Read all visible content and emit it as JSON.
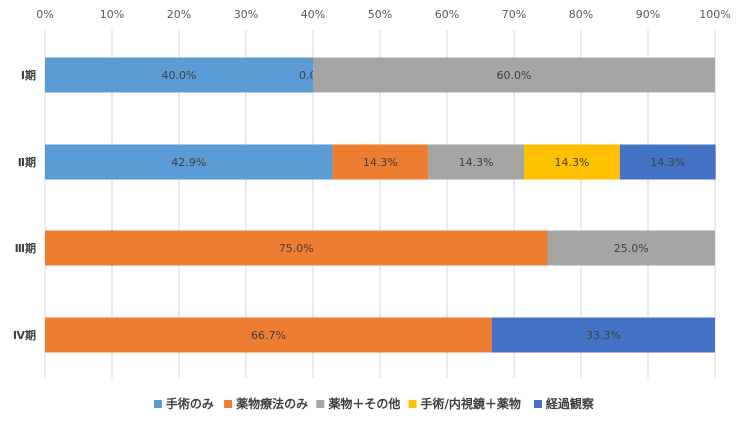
{
  "chart_data": {
    "type": "bar",
    "orientation": "horizontal",
    "stacked": "percent",
    "categories": [
      "Ⅰ期",
      "Ⅱ期",
      "Ⅲ期",
      "Ⅳ期"
    ],
    "series": [
      {
        "name": "手術のみ",
        "color": "#5B9BD5",
        "values": [
          40.0,
          42.9,
          0,
          0
        ],
        "labels": [
          "40.0%",
          "42.9%",
          "",
          ""
        ]
      },
      {
        "name": "薬物療法のみ",
        "color": "#ED7D31",
        "values": [
          0.0,
          14.3,
          75.0,
          66.7
        ],
        "labels": [
          "0.0%",
          "14.3%",
          "75.0%",
          "66.7%"
        ]
      },
      {
        "name": "薬物＋その他",
        "color": "#A5A5A5",
        "values": [
          60.0,
          14.3,
          25.0,
          0
        ],
        "labels": [
          "60.0%",
          "14.3%",
          "25.0%",
          ""
        ]
      },
      {
        "name": "手術/内視鏡＋薬物",
        "color": "#FFC000",
        "values": [
          0,
          14.3,
          0,
          0
        ],
        "labels": [
          "",
          "14.3%",
          "",
          ""
        ]
      },
      {
        "name": "経過観察",
        "color": "#4472C4",
        "values": [
          0,
          14.3,
          0,
          33.3
        ],
        "labels": [
          "",
          "14.3%",
          "",
          "33.3%"
        ]
      }
    ],
    "x_ticks": [
      "0%",
      "10%",
      "20%",
      "30%",
      "40%",
      "50%",
      "60%",
      "70%",
      "80%",
      "90%",
      "100%"
    ],
    "xlim": [
      0,
      100
    ],
    "xlabel": "",
    "ylabel": "",
    "title": "",
    "grid": "vertical",
    "legend_position": "bottom"
  }
}
